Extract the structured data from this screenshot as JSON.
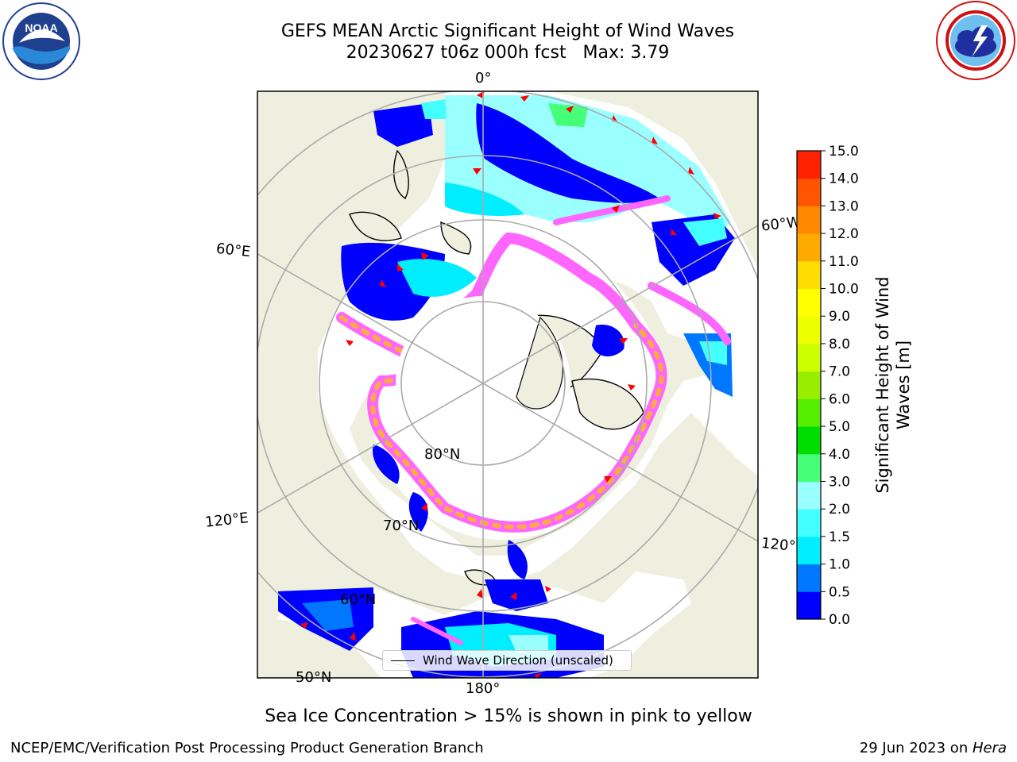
{
  "header": {
    "title_line1": "GEFS MEAN Arctic Significant Height of Wind Waves",
    "title_line2": "20230627 t06z 000h fcst   Max: 3.79"
  },
  "logos": {
    "left": {
      "text": "NOAA",
      "ring_text": "NATIONAL OCEANIC AND ATMOSPHERIC ADMINISTRATION · U.S. DEPARTMENT OF COMMERCE"
    },
    "right": {
      "ring_text": "NATIONAL WEATHER SERVICE"
    }
  },
  "map": {
    "projection": "north-polar-stereographic",
    "meridian_labels": {
      "m0": "0°",
      "m60e": "60°E",
      "m60w": "60°W",
      "m120e": "120°E",
      "m120w": "120°W",
      "m180": "180°"
    },
    "parallel_labels": {
      "p80": "80°N",
      "p70": "70°N",
      "p60": "60°N",
      "p50": "50°N"
    },
    "colors": {
      "land": "#efefdf",
      "ocean_low": "#0000ff",
      "ice_pink": "#ff66ff",
      "ice_orange": "#ffaa44",
      "arrow": "#ff0000",
      "grid": "#aaaaaa"
    },
    "legend_label": "Wind Wave Direction (unscaled)"
  },
  "colorbar": {
    "title": "Significant Height of Wind Waves [m]",
    "title_line1": "Significant Height of Wind",
    "title_line2": "Waves [m]",
    "ticks": [
      "0.0",
      "0.5",
      "1.0",
      "1.5",
      "2.0",
      "3.0",
      "4.0",
      "5.0",
      "6.0",
      "7.0",
      "8.0",
      "9.0",
      "10.0",
      "11.0",
      "12.0",
      "13.0",
      "14.0",
      "15.0"
    ],
    "colors": [
      "#0000ff",
      "#0077ff",
      "#00eeff",
      "#44ffff",
      "#99ffff",
      "#44ff77",
      "#00dd00",
      "#55ee00",
      "#99ee00",
      "#ccff00",
      "#eeff00",
      "#ffff00",
      "#ffdd00",
      "#ffaa00",
      "#ff8800",
      "#ff5500",
      "#ff2200"
    ]
  },
  "chart_data": {
    "type": "heatmap",
    "title": "GEFS MEAN Arctic Significant Height of Wind Waves",
    "subtitle": "20230627 t06z 000h fcst   Max: 3.79",
    "max_value": 3.79,
    "units": "m",
    "colorbar_range": [
      0.0,
      15.0
    ],
    "colorbar_levels": [
      0.0,
      0.5,
      1.0,
      1.5,
      2.0,
      3.0,
      4.0,
      5.0,
      6.0,
      7.0,
      8.0,
      9.0,
      10.0,
      11.0,
      12.0,
      13.0,
      14.0,
      15.0
    ]
  },
  "notes": {
    "sea_ice": "Sea Ice Concentration > 15% is shown in pink to yellow"
  },
  "footer": {
    "left": "NCEP/EMC/Verification Post Processing Product Generation Branch",
    "right_date": "29 Jun 2023 on ",
    "right_host": "Hera"
  }
}
